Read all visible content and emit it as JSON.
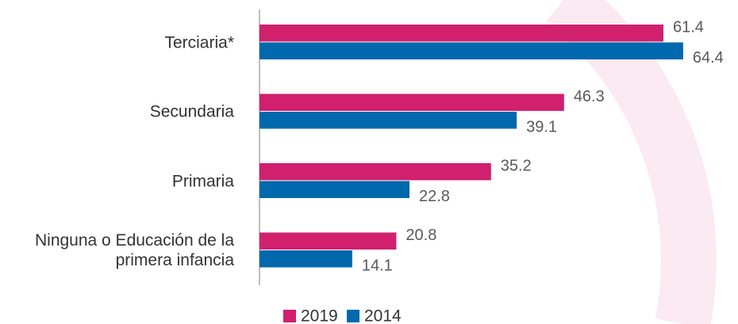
{
  "chart_data": {
    "type": "hbar",
    "categories": [
      "Terciaria*",
      "Secundaria",
      "Primaria",
      "Ninguna o Educación de la primera infancia"
    ],
    "series": [
      {
        "name": "2019",
        "color": "#d0206e",
        "values": [
          61.4,
          46.3,
          35.2,
          20.8
        ]
      },
      {
        "name": "2014",
        "color": "#0068ad",
        "values": [
          64.4,
          39.1,
          22.8,
          14.1
        ]
      }
    ]
  }
}
